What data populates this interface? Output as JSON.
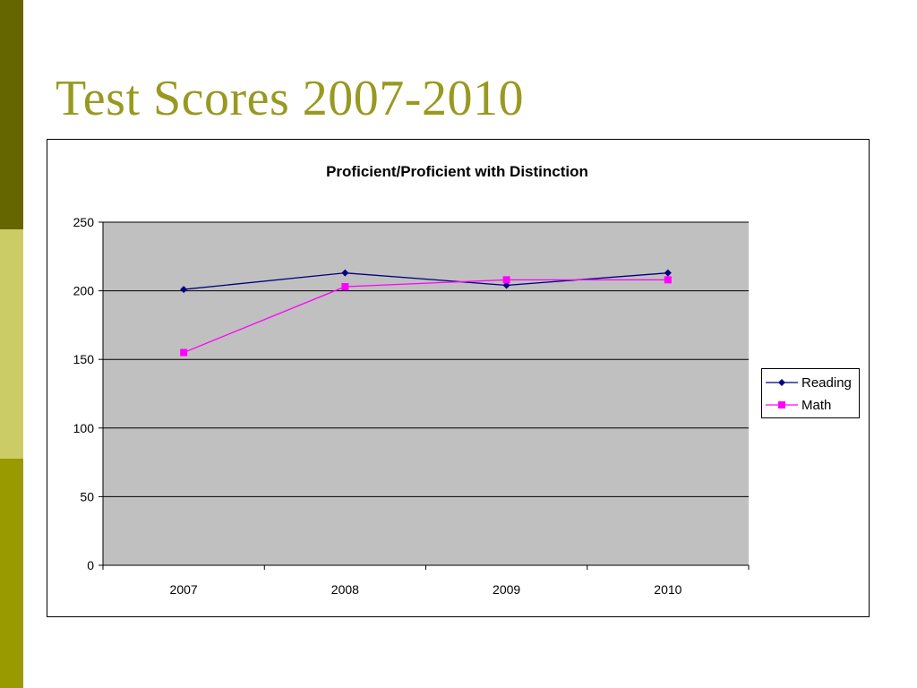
{
  "slide": {
    "title": "Test Scores 2007-2010",
    "colors": {
      "accent_dark": "#666600",
      "accent_light": "#cccc66",
      "accent_mid": "#999900",
      "title": "#999922"
    }
  },
  "chart_data": {
    "type": "line",
    "title": "Proficient/Proficient with Distinction",
    "xlabel": "",
    "ylabel": "",
    "categories": [
      "2007",
      "2008",
      "2009",
      "2010"
    ],
    "ylim": [
      0,
      250
    ],
    "yticks": [
      0,
      50,
      100,
      150,
      200,
      250
    ],
    "grid": true,
    "plot_background": "#c0c0c0",
    "legend_position": "right",
    "series": [
      {
        "name": "Reading",
        "values": [
          201,
          213,
          204,
          213
        ],
        "color": "#000080",
        "marker": "diamond"
      },
      {
        "name": "Math",
        "values": [
          155,
          203,
          208,
          208
        ],
        "color": "#ff00ff",
        "marker": "square"
      }
    ]
  }
}
